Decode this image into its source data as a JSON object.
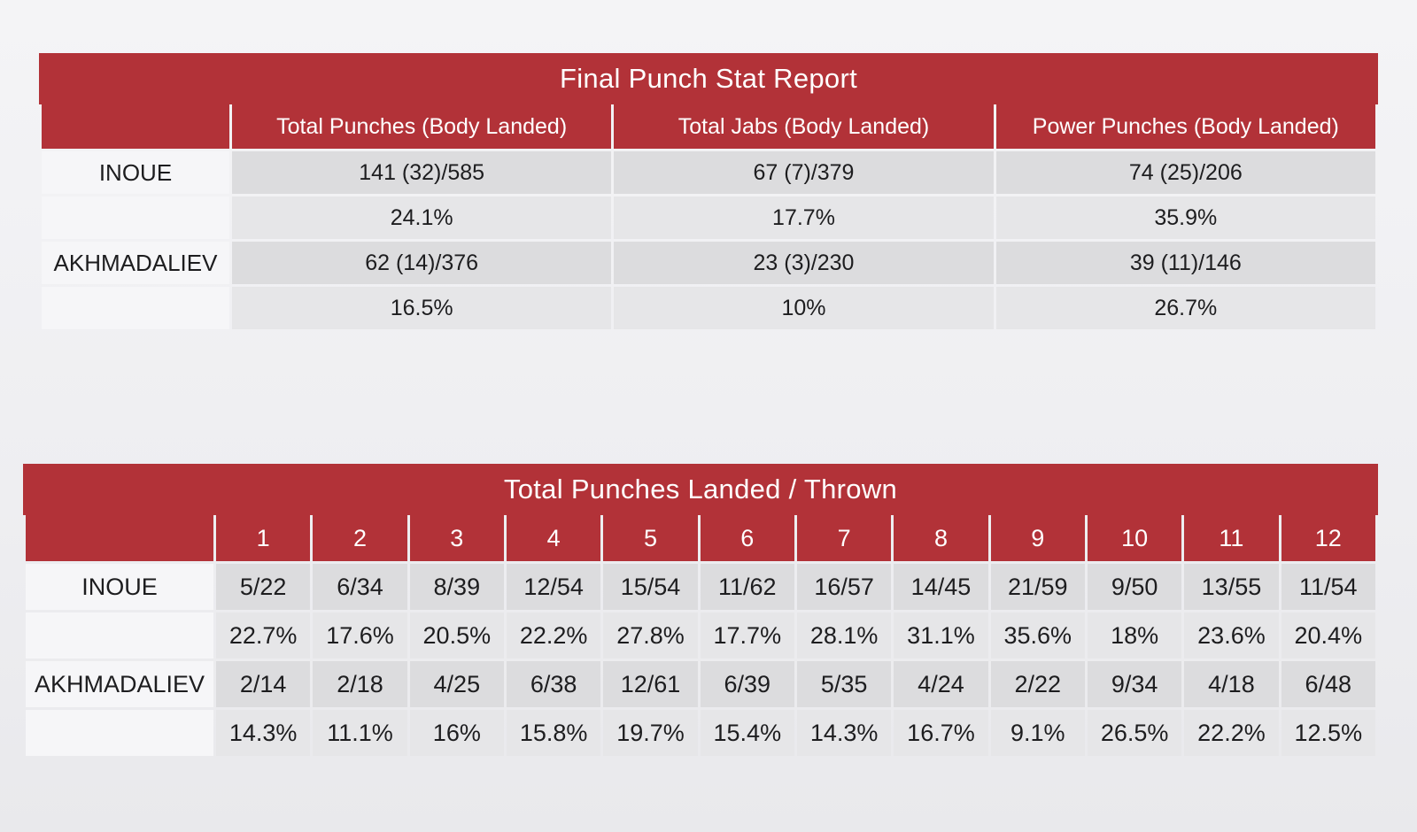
{
  "final_report": {
    "title": "Final Punch Stat Report",
    "columns": [
      "Total Punches (Body Landed)",
      "Total Jabs (Body Landed)",
      "Power Punches (Body Landed)"
    ],
    "rows": [
      {
        "name": "INOUE",
        "counts": [
          "141 (32)/585",
          "67 (7)/379",
          "74 (25)/206"
        ],
        "percents": [
          "24.1%",
          "17.7%",
          "35.9%"
        ]
      },
      {
        "name": "AKHMADALIEV",
        "counts": [
          "62 (14)/376",
          "23 (3)/230",
          "39 (11)/146"
        ],
        "percents": [
          "16.5%",
          "10%",
          "26.7%"
        ]
      }
    ]
  },
  "rounds_report": {
    "title": "Total Punches Landed / Thrown",
    "rounds": [
      "1",
      "2",
      "3",
      "4",
      "5",
      "6",
      "7",
      "8",
      "9",
      "10",
      "11",
      "12"
    ],
    "rows": [
      {
        "name": "INOUE",
        "counts": [
          "5/22",
          "6/34",
          "8/39",
          "12/54",
          "15/54",
          "11/62",
          "16/57",
          "14/45",
          "21/59",
          "9/50",
          "13/55",
          "11/54"
        ],
        "percents": [
          "22.7%",
          "17.6%",
          "20.5%",
          "22.2%",
          "27.8%",
          "17.7%",
          "28.1%",
          "31.1%",
          "35.6%",
          "18%",
          "23.6%",
          "20.4%"
        ]
      },
      {
        "name": "AKHMADALIEV",
        "counts": [
          "2/14",
          "2/18",
          "4/25",
          "6/38",
          "12/61",
          "6/39",
          "5/35",
          "4/24",
          "2/22",
          "9/34",
          "4/18",
          "6/48"
        ],
        "percents": [
          "14.3%",
          "11.1%",
          "16%",
          "15.8%",
          "19.7%",
          "15.4%",
          "14.3%",
          "16.7%",
          "9.1%",
          "26.5%",
          "22.2%",
          "12.5%"
        ]
      }
    ]
  },
  "colors": {
    "header_red": "#b23238",
    "cell_gray": "#dcdcde",
    "background": "#f4f4f6"
  }
}
